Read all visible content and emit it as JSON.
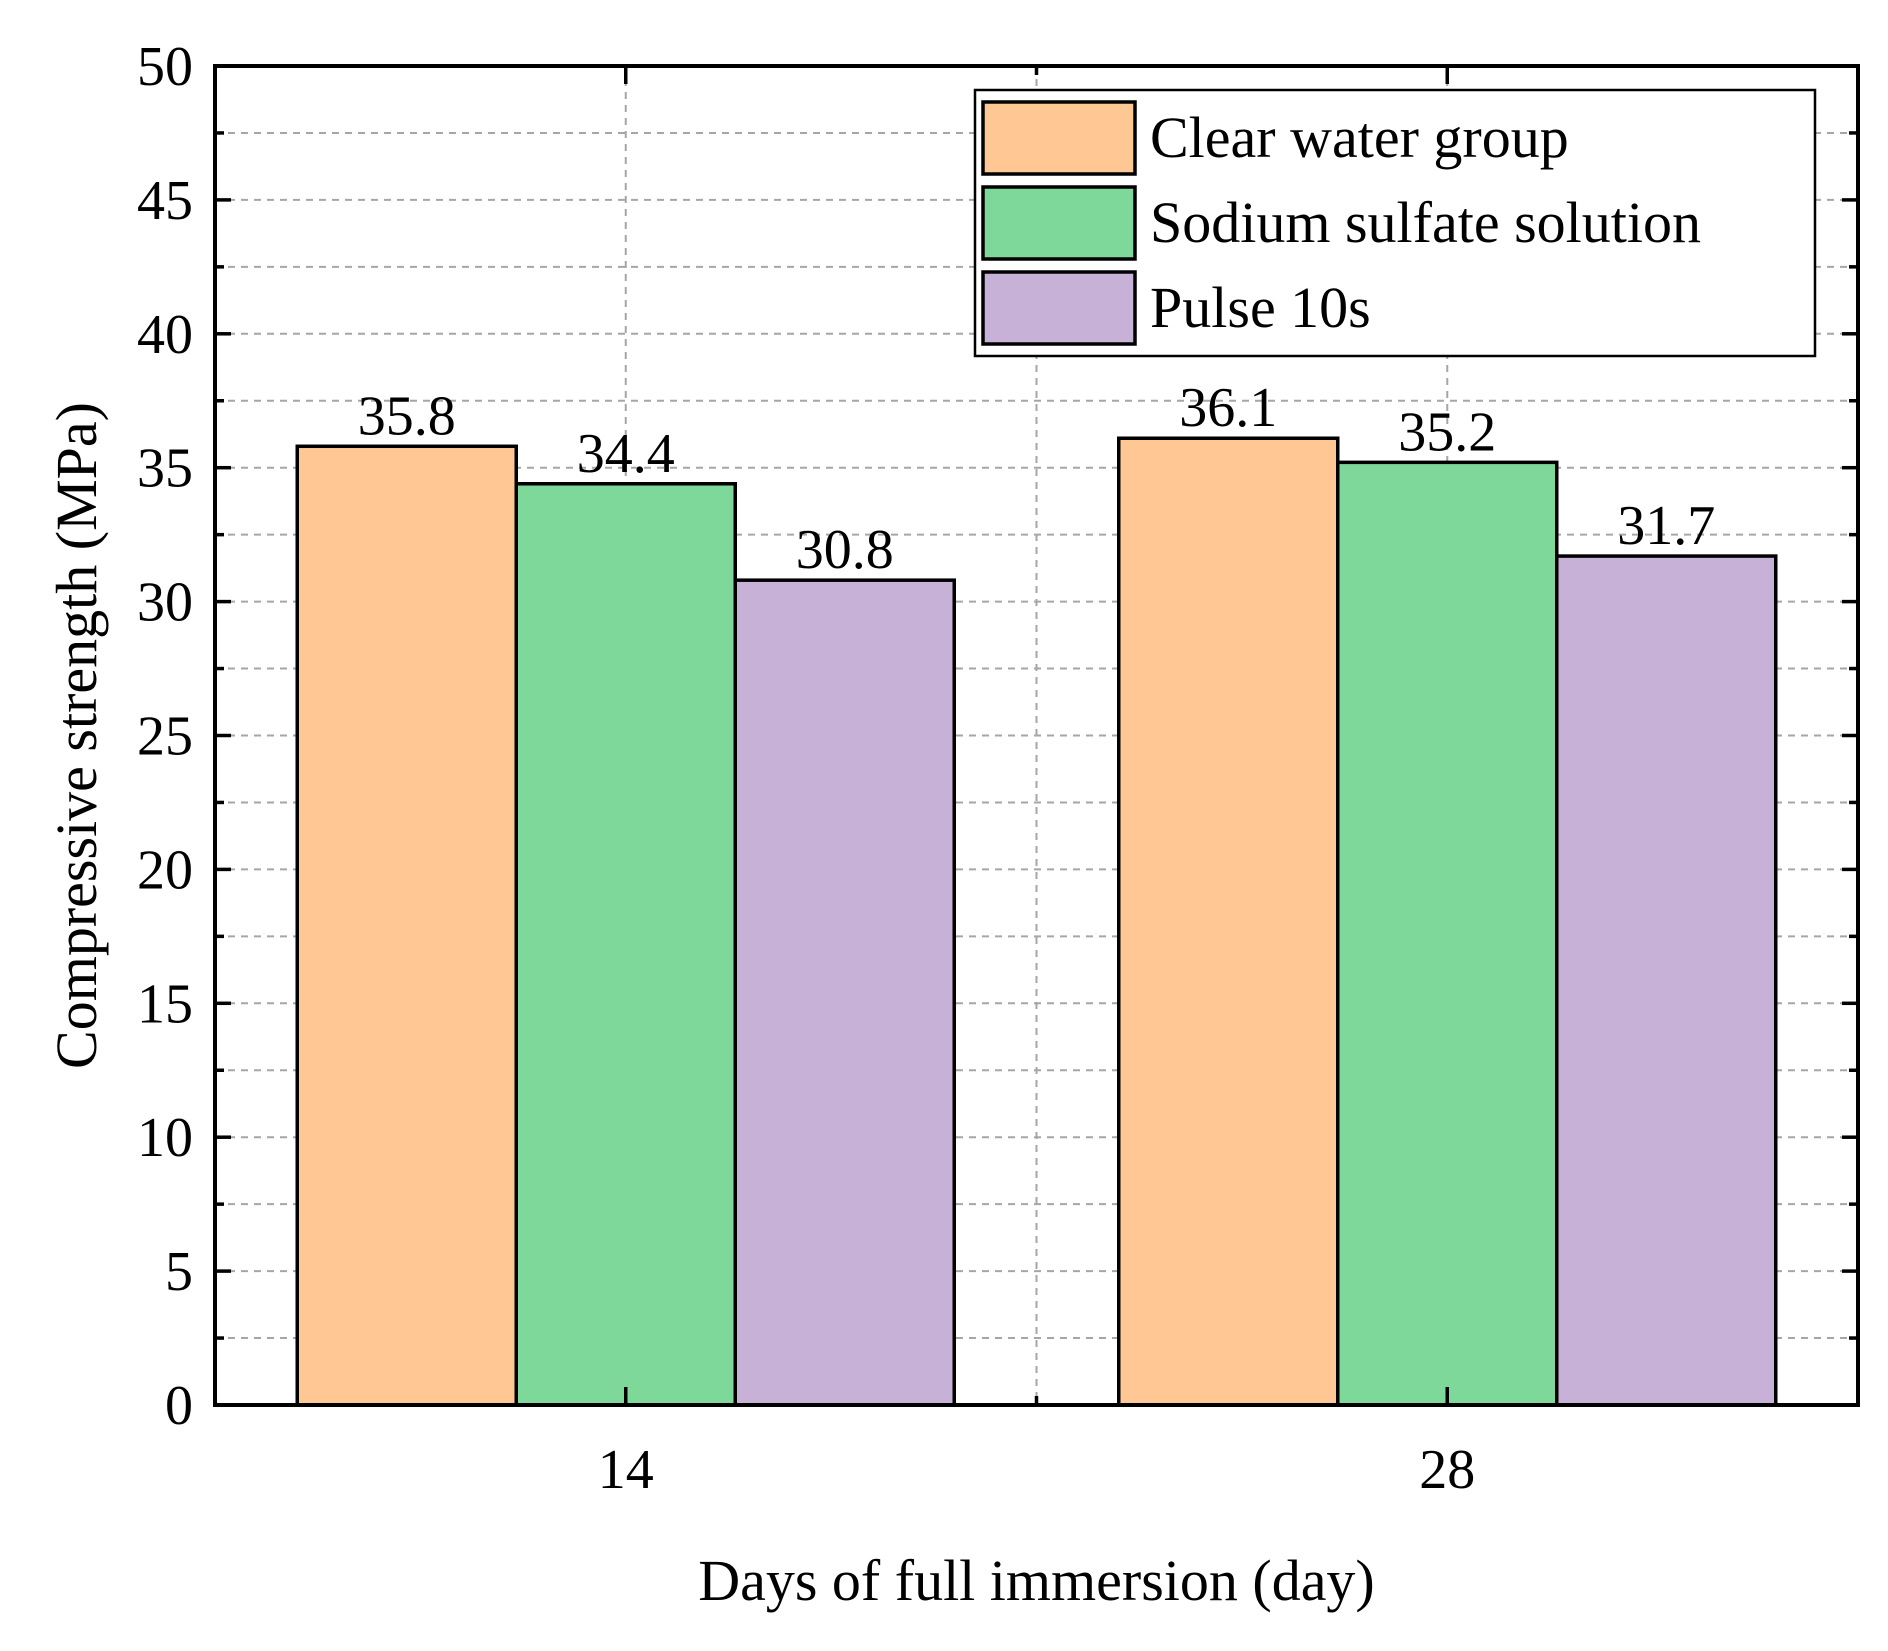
{
  "chart_data": {
    "type": "bar",
    "title": "",
    "xlabel": "Days of full immersion (day)",
    "ylabel": "Compressive strength (MPa)",
    "categories": [
      "14",
      "28"
    ],
    "series": [
      {
        "name": "Clear water group",
        "color": "#FEC793",
        "values": [
          35.8,
          36.1
        ],
        "labels": [
          "35.8",
          "36.1"
        ]
      },
      {
        "name": "Sodium sulfate solution",
        "color": "#7ED899",
        "values": [
          34.4,
          35.2
        ],
        "labels": [
          "34.4",
          "35.2"
        ]
      },
      {
        "name": "Pulse 10s",
        "color": "#C8B1D6",
        "values": [
          30.8,
          31.7
        ],
        "labels": [
          "30.8",
          "31.7"
        ]
      }
    ],
    "ylim": [
      0,
      50
    ],
    "yticks": [
      "0",
      "5",
      "10",
      "15",
      "20",
      "25",
      "30",
      "35",
      "40",
      "45",
      "50"
    ],
    "ytick_step": 5,
    "grid": true,
    "legend_position": "top-right"
  }
}
